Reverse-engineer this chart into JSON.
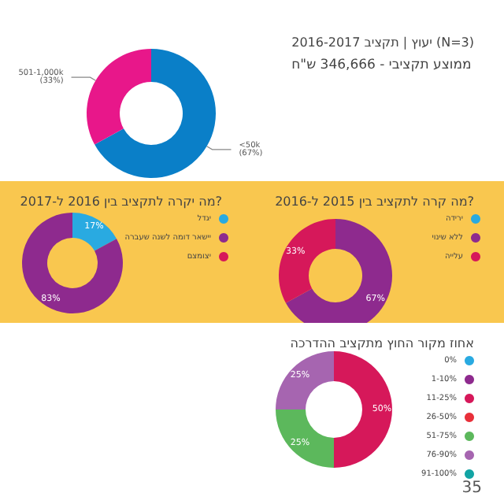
{
  "chart_data": [
    {
      "type": "donut",
      "title": "יעוץ | תקציב 2016-2017 (N=3)",
      "subtitle": "ממוצע תקציבי - 346,666 ש\"ח",
      "categories": [
        "<50k",
        "501-1,000k"
      ],
      "values": [
        67,
        33
      ],
      "colors": [
        "#0a7fc8",
        "#e8178a"
      ],
      "value_labels": [
        "(67%)",
        "(33%)"
      ],
      "legend": false
    },
    {
      "type": "donut",
      "title": "מה קרה לתקציב בין 2015 ל-2016?",
      "categories": [
        "ירידה",
        "ללא שינוי",
        "עלייה"
      ],
      "values": [
        0,
        67,
        33
      ],
      "colors": [
        "#29aae1",
        "#8e2a8e",
        "#d6185a"
      ],
      "value_labels": [
        null,
        "67%",
        "33%"
      ],
      "legend": "top right"
    },
    {
      "type": "donut",
      "title": "מה יקרה לתקציב בין 2016 ל-2017?",
      "categories": [
        "יגדל",
        "יישאר דומה לשנה שעברה",
        "יצומצם"
      ],
      "values": [
        17,
        83,
        0
      ],
      "colors": [
        "#29aae1",
        "#8e2a8e",
        "#d6185a"
      ],
      "value_labels": [
        "17%",
        "83%",
        null
      ],
      "legend": "top right"
    },
    {
      "type": "donut",
      "title": "אחוז מקור החוץ מתקציב ההדרכה",
      "categories": [
        "0%",
        "1-10%",
        "11-25%",
        "26-50%",
        "51-75%",
        "76-90%",
        "91-100%"
      ],
      "values": [
        0,
        0,
        50,
        0,
        25,
        25,
        0
      ],
      "colors": [
        "#29aae1",
        "#8e2a8e",
        "#d6185a",
        "#e8303a",
        "#5cb85c",
        "#a665b0",
        "#12a4a4"
      ],
      "value_labels": [
        null,
        null,
        "50%",
        null,
        "25%",
        "25%",
        null
      ],
      "legend": "right",
      "annotations": [
        "35"
      ]
    }
  ]
}
